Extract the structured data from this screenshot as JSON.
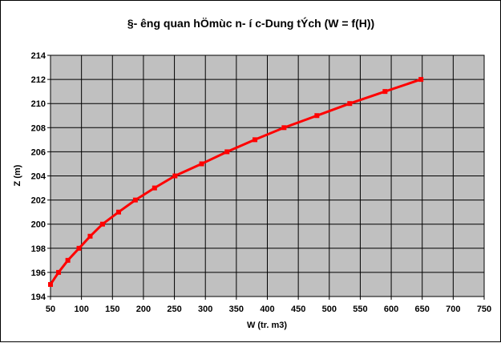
{
  "chart_data": {
    "type": "line",
    "title": "§- êng quan hÖmùc n- í c-Dung tÝch (W = f(H))",
    "xlabel": "W (tr. m3)",
    "ylabel": "Z (m)",
    "xlim": [
      50,
      750
    ],
    "ylim": [
      194,
      214
    ],
    "xticks": [
      "50",
      "100",
      "150",
      "200",
      "250",
      "300",
      "350",
      "400",
      "450",
      "500",
      "550",
      "600",
      "650",
      "700",
      "750"
    ],
    "yticks": [
      "194",
      "196",
      "198",
      "200",
      "202",
      "204",
      "206",
      "208",
      "210",
      "212",
      "214"
    ],
    "grid": true,
    "legend": "none",
    "colors": {
      "line": "#ff0000",
      "plot_bg": "#c0c0c0",
      "grid": "#000000"
    },
    "series": [
      {
        "x": [
          50,
          63,
          78,
          96,
          114,
          134,
          160,
          187,
          218,
          251,
          294,
          335,
          380,
          427,
          480,
          533,
          590,
          648
        ],
        "y": [
          195,
          196,
          197,
          198,
          199,
          200,
          201,
          202,
          203,
          204,
          205,
          206,
          207,
          208,
          209,
          210,
          211,
          212
        ]
      }
    ]
  }
}
